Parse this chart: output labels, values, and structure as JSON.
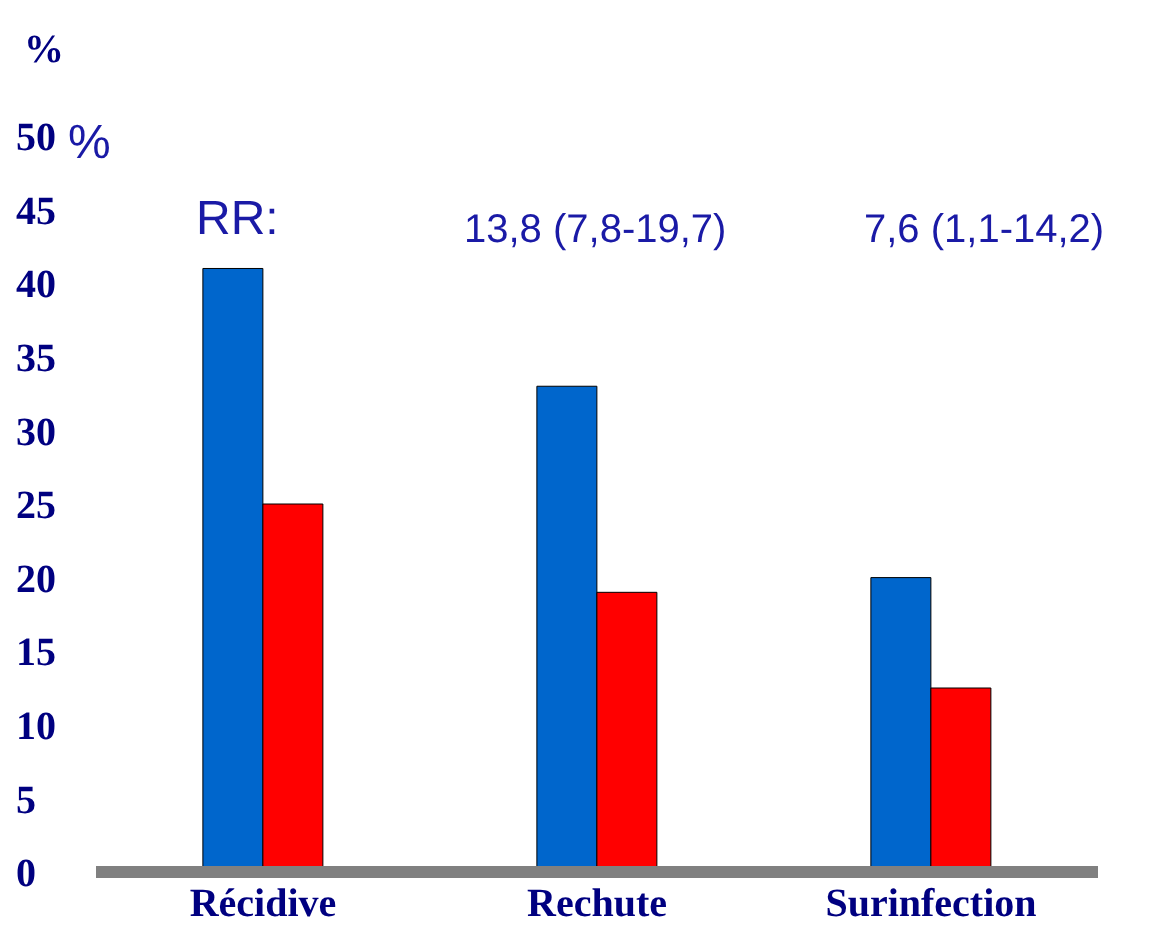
{
  "chart_data": {
    "type": "bar",
    "ylabel": "%",
    "categories": [
      "Récidive",
      "Rechute",
      "Surinfection"
    ],
    "series": [
      {
        "color": "#0066cc",
        "values": [
          41,
          33,
          20
        ]
      },
      {
        "color": "#ff0000",
        "values": [
          25,
          19,
          12.5
        ]
      }
    ],
    "ylim": [
      0,
      50
    ],
    "yticks": [
      0,
      5,
      10,
      15,
      20,
      25,
      30,
      35,
      40,
      45,
      50
    ],
    "annotations": [
      "%",
      "RR:",
      "13,8 (7,8-19,7)",
      "7,6 (1,1-14,2)"
    ]
  }
}
